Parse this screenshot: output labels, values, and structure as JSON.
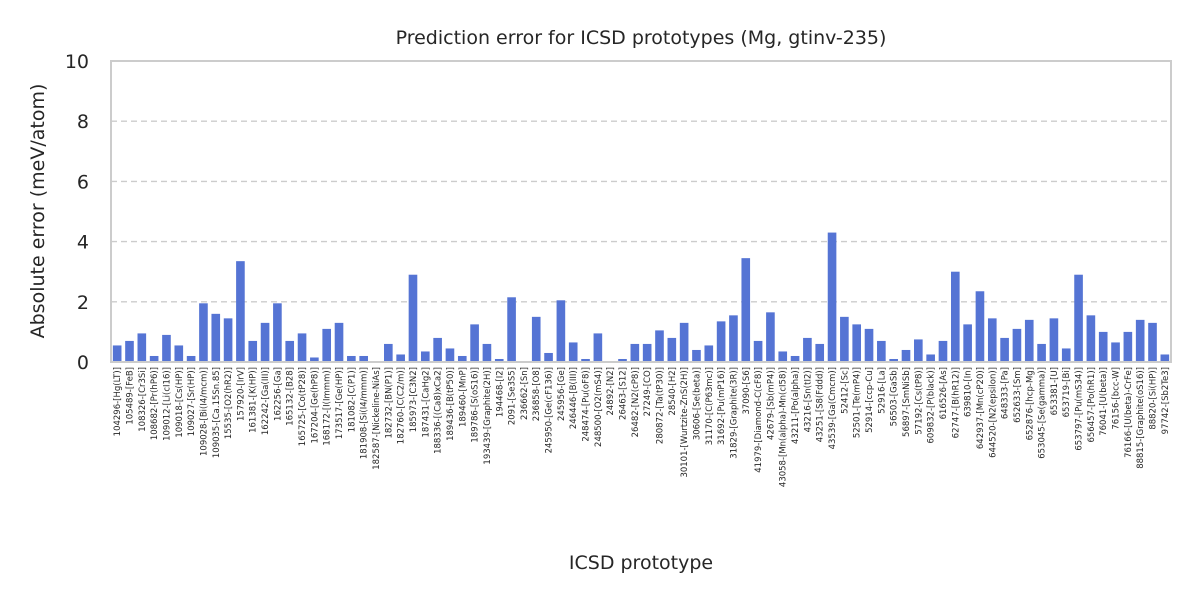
{
  "chart_data": {
    "type": "bar",
    "title": "Prediction error for ICSD prototypes (Mg, gtinv-235)",
    "xlabel": "ICSD prototype",
    "ylabel": "Absolute error (meV/atom)",
    "ylim": [
      0,
      10
    ],
    "yticks": [
      0,
      2,
      4,
      6,
      8,
      10
    ],
    "grid": "horizontal-dashed",
    "categories": [
      "104296-[Hg(LT)]",
      "105489-[FeB]",
      "108326-[Cr3Si]",
      "108682-[Pr(hP6)]",
      "109012-[Li(cI16)]",
      "109018-[Cs(HP)]",
      "109027-[Sr(HP)]",
      "109028-[Bi(I4/mcm)]",
      "109035-[Ca.15Sn.85]",
      "15535-[O2(hR2)]",
      "157920-[IrV]",
      "161381-[K(HP)]",
      "162242-[Ga(III)]",
      "162256-[Ga]",
      "165132-[B28]",
      "165725-[Co(tP28)]",
      "167204-[Ge(hP8)]",
      "168172-[I(Immm)]",
      "173517-[Ge(HP)]",
      "181082-[C(P1)]",
      "181908-[Si(I4/mmm)]",
      "182587-[Nickeline-NiAs]",
      "182732-[BN(P1)]",
      "182760-[C(C2/m)]",
      "185973-[C3N2]",
      "187431-[CaHg2]",
      "188336-[(Ca8)xCa2]",
      "189436-[B(tP50)]",
      "189460-[MnP]",
      "189786-[S(oS16)]",
      "193439-[Graphite(2H)]",
      "194468-[I2]",
      "2091-[Se3S5]",
      "236662-[Sn]",
      "236858-[O8]",
      "245950-[Ge(cF136)]",
      "245956-[Ge]",
      "246446-[B(III)]",
      "248474-[Pu(oF8)]",
      "248500-[O2(mS4)]",
      "24892-[N2]",
      "26463-[S12]",
      "26482-[N2(cP8)]",
      "27249-[CO]",
      "280872-[Ta(tP30)]",
      "28540-[H2]",
      "30101-[Wurtzite-ZnS(2H)]",
      "30606-[Se(beta)]",
      "31170-[C(P63mc)]",
      "31692-[Pu(mP16)]",
      "31829-[Graphite(3R)]",
      "37090-[S6]",
      "41979-[Diamond-C(cF8)]",
      "42679-[Sb(mP4)]",
      "43058-[Mn(alpha)-Mn(cI58)]",
      "43211-[Po(alpha)]",
      "43216-[Sn(tI2)]",
      "43251-[S8(Fddd)]",
      "43539-[Ga(Cmcm)]",
      "52412-[Sc]",
      "52501-[Te(mP4)]",
      "52914-[ccp-Cu]",
      "52916-[La]",
      "56503-[GaSb]",
      "56897-[SmNiSb]",
      "57192-[Cs(tP8)]",
      "609832-[P(black)]",
      "616526-[As]",
      "62747-[B(hR12)]",
      "639810-[In]",
      "642937-[Mn(cP20)]",
      "644520-[N2(epsilon)]",
      "648333-[Pa]",
      "652633-[Sm]",
      "652876-[hcp-Mg]",
      "653045-[Se(gamma)]",
      "653381-[U]",
      "653719-[Bi]",
      "653797-[Pu(mS34)]",
      "656457-[Po(hR1)]",
      "76041-[U(beta)]",
      "76156-[bcc-W]",
      "76166-[U(beta)-CrFe]",
      "88815-[Graphite(oS16)]",
      "88820-[Si(HP)]",
      "97742-[Sb2Te3]"
    ],
    "values": [
      0.55,
      0.7,
      0.95,
      0.2,
      0.9,
      0.55,
      0.2,
      1.95,
      1.6,
      1.45,
      3.35,
      0.7,
      1.3,
      1.95,
      0.7,
      0.95,
      0.15,
      1.1,
      1.3,
      0.2,
      0.2,
      0.0,
      0.6,
      0.25,
      2.9,
      0.35,
      0.8,
      0.45,
      0.2,
      1.25,
      0.6,
      0.1,
      2.15,
      0.0,
      1.5,
      0.3,
      2.05,
      0.65,
      0.1,
      0.95,
      0.0,
      0.1,
      0.6,
      0.6,
      1.05,
      0.8,
      1.3,
      0.4,
      0.55,
      1.35,
      1.55,
      3.45,
      0.7,
      1.65,
      0.35,
      0.2,
      0.8,
      0.6,
      4.3,
      1.5,
      1.25,
      1.1,
      0.7,
      0.1,
      0.4,
      0.75,
      0.25,
      0.7,
      3.0,
      1.25,
      2.35,
      1.45,
      0.8,
      1.1,
      1.4,
      0.6,
      1.45,
      0.45,
      2.9,
      1.55,
      1.0,
      0.65,
      1.0,
      1.4,
      1.3,
      0.25
    ]
  }
}
